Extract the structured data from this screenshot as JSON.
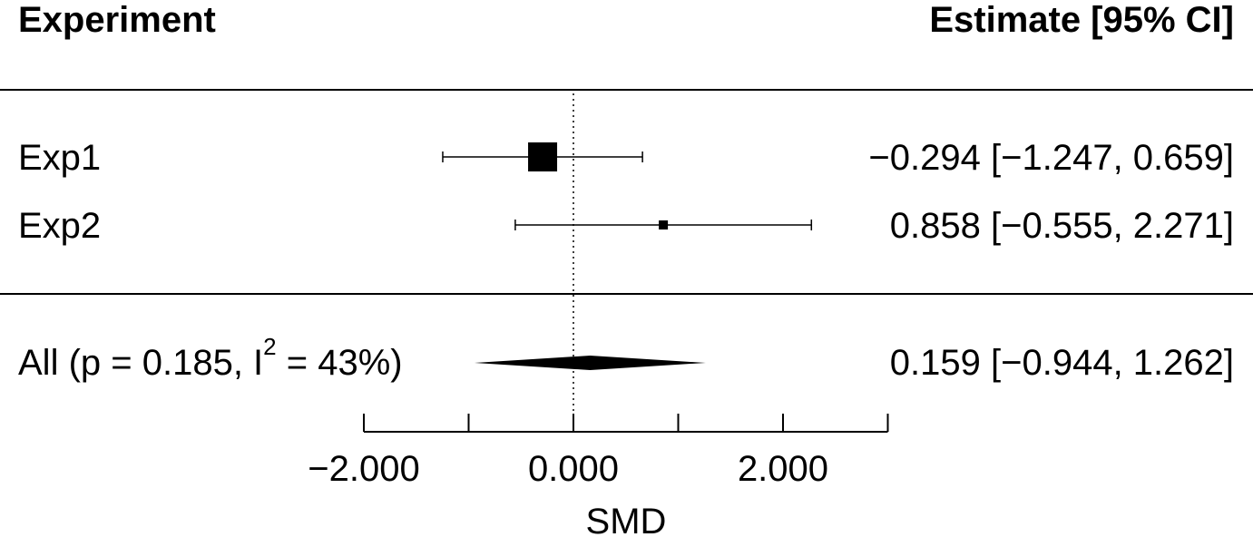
{
  "chart_data": {
    "type": "forest",
    "header_left": "Experiment",
    "header_right": "Estimate [95% CI]",
    "xlabel": "SMD",
    "xlim": [
      -2.0,
      3.0
    ],
    "ticks": [
      -2.0,
      -1.0,
      0.0,
      1.0,
      2.0,
      3.0
    ],
    "tick_labels": [
      "−2.000",
      "",
      "0.000",
      "",
      "2.000",
      ""
    ],
    "reference_line": 0,
    "studies": [
      {
        "label": "Exp1",
        "estimate": -0.294,
        "ci_low": -1.247,
        "ci_high": 0.659,
        "weight_marker": "large",
        "text": "−0.294 [−1.247, 0.659]"
      },
      {
        "label": "Exp2",
        "estimate": 0.858,
        "ci_low": -0.555,
        "ci_high": 2.271,
        "weight_marker": "small",
        "text": "0.858 [−0.555, 2.271]"
      }
    ],
    "summary": {
      "label_prefix": "All (p = 0.185, I",
      "label_sup": "2",
      "label_suffix": " = 43%)",
      "estimate": 0.159,
      "ci_low": -0.944,
      "ci_high": 1.262,
      "text": "0.159 [−0.944, 1.262]"
    }
  }
}
